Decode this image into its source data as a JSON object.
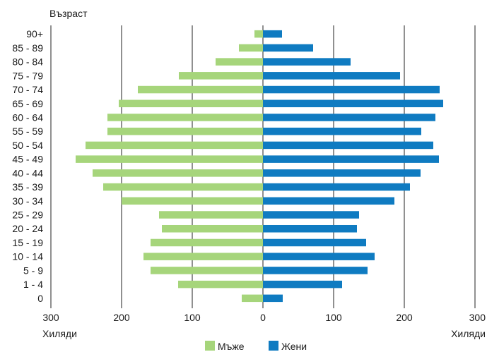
{
  "chart_data": {
    "type": "bar",
    "orientation": "horizontal",
    "layout": "population-pyramid",
    "y_axis_title": "Възраст",
    "x_unit_left": "Хиляди",
    "x_unit_right": "Хиляди",
    "categories": [
      "0",
      "1 - 4",
      "5 - 9",
      "10 - 14",
      "15 - 19",
      "20 - 24",
      "25 - 29",
      "30 - 34",
      "35 - 39",
      "40 - 44",
      "45 - 49",
      "50 - 54",
      "55 - 59",
      "60 - 64",
      "65 - 69",
      "70 - 74",
      "75 - 79",
      "80 - 84",
      "85 - 89",
      "90+"
    ],
    "x_ticks": [
      "300",
      "200",
      "100",
      "0",
      "100",
      "200",
      "300"
    ],
    "xlim": [
      -300,
      300
    ],
    "grid": true,
    "legend_position": "bottom",
    "series": [
      {
        "name": "Мъже",
        "color": "#a6d57b",
        "side": "left",
        "values": [
          30,
          120,
          159,
          169,
          159,
          143,
          147,
          200,
          226,
          241,
          265,
          251,
          220,
          220,
          204,
          177,
          119,
          67,
          34,
          12
        ]
      },
      {
        "name": "Жени",
        "color": "#0f7bc1",
        "side": "right",
        "values": [
          28,
          112,
          148,
          158,
          146,
          133,
          136,
          186,
          208,
          223,
          249,
          241,
          224,
          244,
          255,
          250,
          194,
          124,
          71,
          27
        ]
      }
    ]
  }
}
